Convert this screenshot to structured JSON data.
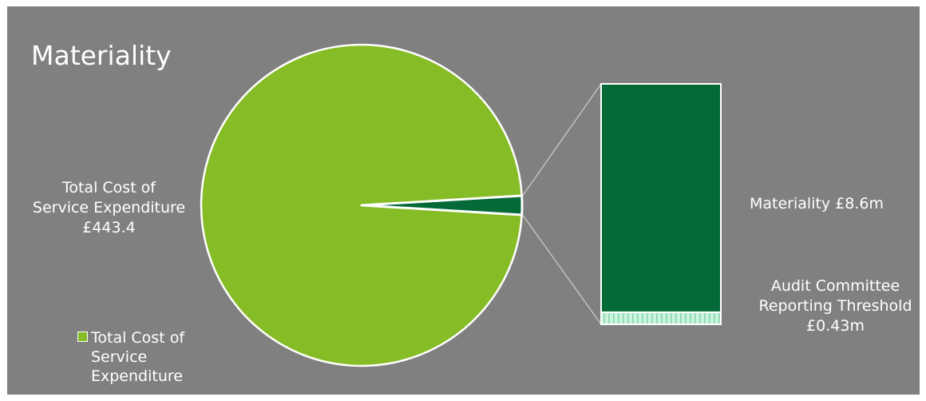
{
  "title": "Materiality",
  "colors": {
    "background": "#808080",
    "pie_main": "#86bc25",
    "pie_slice": "#046a38",
    "threshold_fill": "#c8f5dc",
    "connector": "#c8c8c8",
    "text": "#ffffff"
  },
  "labels": {
    "pie_label": [
      "Total Cost of",
      "Service Expenditure",
      "£443.4"
    ],
    "bar_materiality": "Materiality £8.6m",
    "bar_threshold": [
      "Audit Committee",
      "Reporting Threshold",
      "£0.43m"
    ]
  },
  "legend": {
    "items": [
      {
        "text": "Total Cost of Service Expenditure",
        "color": "#86bc25"
      }
    ]
  },
  "chart_data": {
    "type": "pie",
    "subtype": "bar-of-pie",
    "pie": [
      {
        "name": "Total Cost of Service Expenditure",
        "value": 443.4,
        "color": "#86bc25"
      },
      {
        "name": "Materiality",
        "value": 8.6,
        "color": "#046a38"
      }
    ],
    "breakout_bar": [
      {
        "name": "Materiality",
        "value": 8.6,
        "color": "#046a38"
      },
      {
        "name": "Audit Committee Reporting Threshold",
        "value": 0.43,
        "color": "#c8f5dc"
      }
    ],
    "units": "£m"
  }
}
